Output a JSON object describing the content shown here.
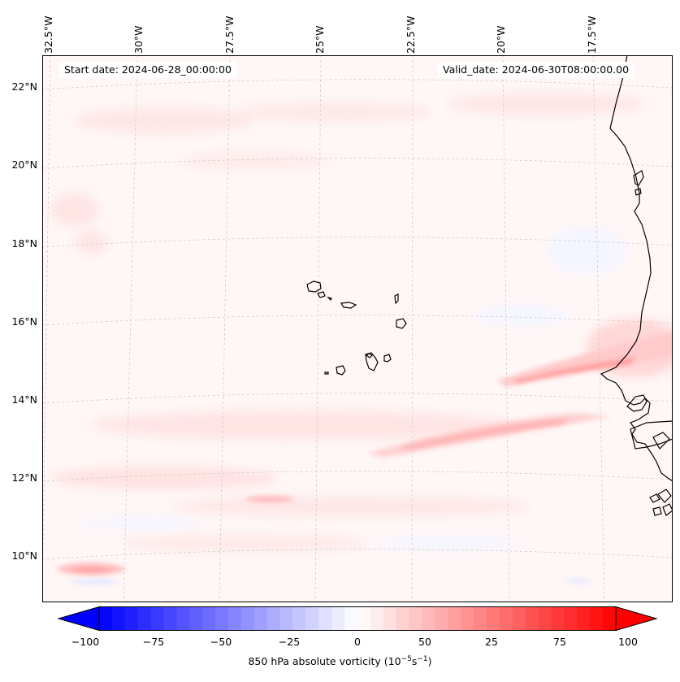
{
  "map": {
    "start_date": "Start date: 2024-06-28_00:00:00",
    "valid_date": "Valid_date: 2024-06-30T08:00:00.00",
    "lon_labels": [
      "32.5°W",
      "30°W",
      "27.5°W",
      "25°W",
      "22.5°W",
      "20°W",
      "17.5°W"
    ],
    "lat_labels": [
      "22°N",
      "20°N",
      "18°N",
      "16°N",
      "14°N",
      "12°N",
      "10°N"
    ],
    "region": "Cabo Verde islands and West African coast (Senegal / Gambia / Guinea-Bissau)",
    "colors": {
      "negative_max": "#0000ff",
      "neutral": "#ffffff",
      "positive_max": "#ff0000",
      "coastline": "#000000",
      "gridline": "#cccccc"
    }
  },
  "colorbar": {
    "label_prefix": "850 hPa absolute vorticity (10",
    "exp1": "−5",
    "mid": "s",
    "exp2": "−1",
    "label_suffix": ")",
    "ticks": [
      "−100",
      "−75",
      "−50",
      "−25",
      "0",
      "25",
      "50",
      "75",
      "100"
    ],
    "range": [
      -100,
      100
    ],
    "step": 5
  }
}
